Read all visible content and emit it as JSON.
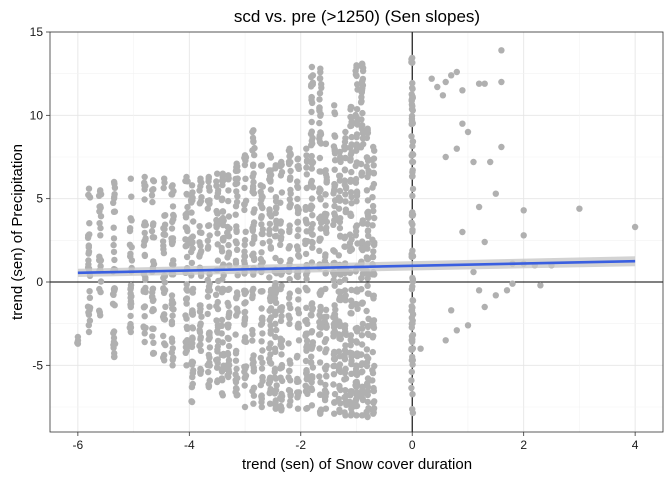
{
  "chart_data": {
    "type": "scatter",
    "title": "scd vs. pre (>1250) (Sen slopes)",
    "xlabel": "trend (sen) of Snow cover duration",
    "ylabel": "trend (sen) of Precipitation",
    "xlim": [
      -6.5,
      4.5
    ],
    "ylim": [
      -9.0,
      15.0
    ],
    "xticks": [
      -6,
      -4,
      -2,
      0,
      2,
      4
    ],
    "xtick_labels": [
      "-6",
      "-4",
      "-2",
      "0",
      "2",
      "4"
    ],
    "yticks": [
      -5,
      0,
      5,
      10,
      15
    ],
    "ytick_labels": [
      "-5",
      "0",
      "5",
      "10",
      "15"
    ],
    "grid": true,
    "point_color": "#b0b0b0",
    "reference_lines": {
      "x": 0,
      "y": 0
    },
    "fit_line": {
      "method": "lm",
      "color": "#3a5fe0",
      "band_color": "#c8c8c8",
      "x": [
        -6,
        4
      ],
      "y": [
        0.55,
        1.25
      ],
      "ci_half_width_ends": [
        0.25,
        0.3
      ]
    },
    "column_x": [
      -6.0,
      -5.8,
      -5.6,
      -5.35,
      -5.05,
      -4.8,
      -4.65,
      -4.45,
      -4.3,
      -4.05,
      -3.95,
      -3.8,
      -3.65,
      -3.5,
      -3.4,
      -3.3,
      -3.15,
      -3.0,
      -2.85,
      -2.7,
      -2.55,
      -2.45,
      -2.35,
      -2.2,
      -2.05,
      -1.9,
      -1.8,
      -1.65,
      -1.55,
      -1.4,
      -1.3,
      -1.2,
      -1.1,
      -1.0,
      -0.9,
      -0.8,
      -0.7
    ],
    "column_y_extents": [
      [
        -3.7,
        -3.3
      ],
      [
        -3.0,
        5.6
      ],
      [
        -2.0,
        5.5
      ],
      [
        -4.5,
        6.0
      ],
      [
        -3.0,
        6.2
      ],
      [
        -3.6,
        6.3
      ],
      [
        -4.3,
        6.1
      ],
      [
        -4.7,
        6.2
      ],
      [
        -5.0,
        5.8
      ],
      [
        -5.0,
        6.3
      ],
      [
        -7.2,
        5.8
      ],
      [
        -5.5,
        6.2
      ],
      [
        -6.3,
        6.3
      ],
      [
        -6.0,
        6.5
      ],
      [
        -6.8,
        6.5
      ],
      [
        -5.7,
        6.4
      ],
      [
        -6.8,
        7.1
      ],
      [
        -7.5,
        7.6
      ],
      [
        -7.3,
        9.1
      ],
      [
        -7.5,
        7.0
      ],
      [
        -7.3,
        7.6
      ],
      [
        -7.6,
        7.0
      ],
      [
        -7.7,
        7.2
      ],
      [
        -7.4,
        8.0
      ],
      [
        -7.6,
        7.4
      ],
      [
        -7.6,
        8.0
      ],
      [
        -7.4,
        12.9
      ],
      [
        -7.9,
        12.8
      ],
      [
        -7.6,
        8.3
      ],
      [
        -7.9,
        10.6
      ],
      [
        -7.8,
        7.8
      ],
      [
        -8.0,
        9.0
      ],
      [
        -8.0,
        10.5
      ],
      [
        -8.0,
        13.0
      ],
      [
        -8.0,
        13.1
      ],
      [
        -8.1,
        9.2
      ],
      [
        -7.9,
        8.1
      ]
    ],
    "zero_column_y_extent": [
      -8.0,
      13.5
    ],
    "positive_points": [
      [
        0.15,
        -4.0
      ],
      [
        0.35,
        12.2
      ],
      [
        0.45,
        11.7
      ],
      [
        0.55,
        11.2
      ],
      [
        0.6,
        12.0
      ],
      [
        0.7,
        12.4
      ],
      [
        0.8,
        12.6
      ],
      [
        0.9,
        11.5
      ],
      [
        1.2,
        11.9
      ],
      [
        1.6,
        13.9
      ],
      [
        1.6,
        12.0
      ],
      [
        1.3,
        11.9
      ],
      [
        0.8,
        8.0
      ],
      [
        0.9,
        9.5
      ],
      [
        1.0,
        9.0
      ],
      [
        0.6,
        7.5
      ],
      [
        1.1,
        7.2
      ],
      [
        1.4,
        7.2
      ],
      [
        1.6,
        8.1
      ],
      [
        1.5,
        5.3
      ],
      [
        0.9,
        3.0
      ],
      [
        1.2,
        4.5
      ],
      [
        1.3,
        2.4
      ],
      [
        1.1,
        0.6
      ],
      [
        1.7,
        -0.5
      ],
      [
        1.8,
        1.1
      ],
      [
        2.0,
        1.1
      ],
      [
        2.0,
        2.8
      ],
      [
        2.0,
        4.3
      ],
      [
        2.2,
        1.0
      ],
      [
        2.3,
        -0.2
      ],
      [
        2.5,
        1.0
      ],
      [
        3.0,
        4.4
      ],
      [
        4.0,
        3.3
      ],
      [
        0.6,
        -3.5
      ],
      [
        0.8,
        -2.9
      ],
      [
        1.0,
        -2.6
      ],
      [
        1.3,
        -1.5
      ],
      [
        1.5,
        -0.8
      ],
      [
        1.8,
        -0.1
      ],
      [
        0.7,
        -1.7
      ],
      [
        1.2,
        -0.5
      ]
    ]
  }
}
